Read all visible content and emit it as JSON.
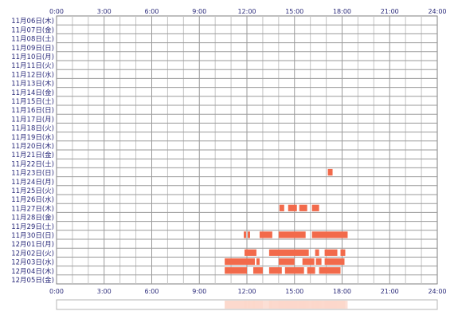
{
  "chart_data": {
    "type": "heatmap",
    "x_ticks": [
      "0:00",
      "3:00",
      "6:00",
      "9:00",
      "12:00",
      "15:00",
      "18:00",
      "21:00",
      "24:00"
    ],
    "xlim": [
      0,
      24
    ],
    "rows": [
      "11月06日(木)",
      "11月07日(金)",
      "11月08日(土)",
      "11月09日(日)",
      "11月10日(月)",
      "11月11日(火)",
      "11月12日(水)",
      "11月13日(木)",
      "11月14日(金)",
      "11月15日(土)",
      "11月16日(日)",
      "11月17日(月)",
      "11月18日(火)",
      "11月19日(水)",
      "11月20日(木)",
      "11月21日(金)",
      "11月22日(土)",
      "11月23日(日)",
      "11月24日(月)",
      "11月25日(火)",
      "11月26日(水)",
      "11月27日(木)",
      "11月28日(金)",
      "11月29日(土)",
      "11月30日(日)",
      "12月01日(月)",
      "12月02日(火)",
      "12月03日(水)",
      "12月04日(木)",
      "12月05日(金)"
    ],
    "grid": true,
    "bar_color": "#f26a4b",
    "light_color": "#f7a58f",
    "summary_strip_color": "#fbd7cb",
    "activity": [
      {
        "day": "11月23日(日)",
        "start": 17.1,
        "end": 17.4
      },
      {
        "day": "11月27日(木)",
        "start": 14.05,
        "end": 14.35
      },
      {
        "day": "11月27日(木)",
        "start": 14.6,
        "end": 15.15
      },
      {
        "day": "11月27日(木)",
        "start": 15.3,
        "end": 15.8
      },
      {
        "day": "11月27日(木)",
        "start": 16.1,
        "end": 16.55
      },
      {
        "day": "11月30日(日)",
        "start": 11.8,
        "end": 11.95
      },
      {
        "day": "11月30日(日)",
        "start": 12.05,
        "end": 12.2
      },
      {
        "day": "11月30日(日)",
        "start": 12.8,
        "end": 13.6
      },
      {
        "day": "11月30日(日)",
        "start": 14.0,
        "end": 15.7
      },
      {
        "day": "11月30日(日)",
        "start": 16.1,
        "end": 18.35
      },
      {
        "day": "12月02日(火)",
        "start": 11.85,
        "end": 12.0
      },
      {
        "day": "12月02日(火)",
        "start": 12.0,
        "end": 12.6
      },
      {
        "day": "12月02日(火)",
        "start": 13.4,
        "end": 15.9
      },
      {
        "day": "12月02日(火)",
        "start": 16.3,
        "end": 16.55
      },
      {
        "day": "12月02日(火)",
        "start": 16.9,
        "end": 17.7
      },
      {
        "day": "12月02日(火)",
        "start": 17.9,
        "end": 18.2
      },
      {
        "day": "12月03日(水)",
        "start": 10.6,
        "end": 12.5
      },
      {
        "day": "12月03日(水)",
        "start": 12.6,
        "end": 12.8
      },
      {
        "day": "12月03日(水)",
        "start": 14.0,
        "end": 15.0
      },
      {
        "day": "12月03日(水)",
        "start": 15.5,
        "end": 16.25
      },
      {
        "day": "12月03日(水)",
        "start": 16.35,
        "end": 16.7
      },
      {
        "day": "12月03日(水)",
        "start": 16.9,
        "end": 18.15
      },
      {
        "day": "12月04日(木)",
        "start": 10.6,
        "end": 12.0
      },
      {
        "day": "12月04日(木)",
        "start": 12.4,
        "end": 13.0
      },
      {
        "day": "12月04日(木)",
        "start": 13.4,
        "end": 14.2
      },
      {
        "day": "12月04日(木)",
        "start": 14.4,
        "end": 15.6
      },
      {
        "day": "12月04日(木)",
        "start": 15.8,
        "end": 16.3
      },
      {
        "day": "12月04日(木)",
        "start": 16.55,
        "end": 17.9
      }
    ]
  }
}
